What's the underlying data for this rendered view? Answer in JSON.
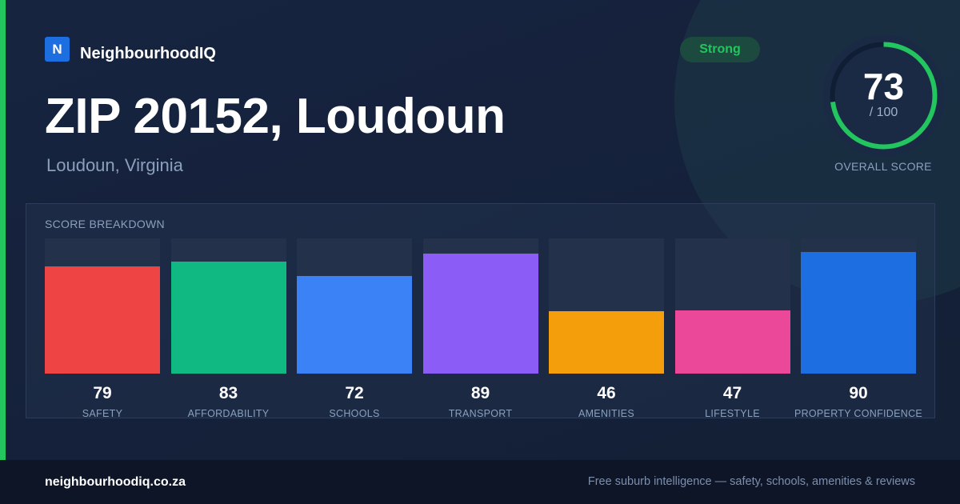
{
  "brand": {
    "logo_letter": "N",
    "name": "NeighbourhoodIQ"
  },
  "header": {
    "title": "ZIP 20152, Loudoun",
    "subtitle": "Loudoun, Virginia"
  },
  "badge": {
    "label": "Strong",
    "color": "#22c55e"
  },
  "overall": {
    "score": "73",
    "max_label": "/ 100",
    "score_fraction": 0.73,
    "label": "OVERALL SCORE",
    "ring_color": "#22c55e"
  },
  "breakdown": {
    "title": "SCORE BREAKDOWN",
    "items": [
      {
        "value": "79",
        "label": "SAFETY",
        "color": "#ef4444"
      },
      {
        "value": "83",
        "label": "AFFORDABILITY",
        "color": "#10b981"
      },
      {
        "value": "72",
        "label": "SCHOOLS",
        "color": "#3b82f6"
      },
      {
        "value": "89",
        "label": "TRANSPORT",
        "color": "#8b5cf6"
      },
      {
        "value": "46",
        "label": "AMENITIES",
        "color": "#f59e0b"
      },
      {
        "value": "47",
        "label": "LIFESTYLE",
        "color": "#ec4899"
      },
      {
        "value": "90",
        "label": "PROPERTY CONFIDENCE",
        "color": "#1d6ee0"
      }
    ]
  },
  "footer": {
    "domain": "neighbourhoodiq.co.za",
    "tagline": "Free suburb intelligence — safety, schools, amenities & reviews"
  }
}
